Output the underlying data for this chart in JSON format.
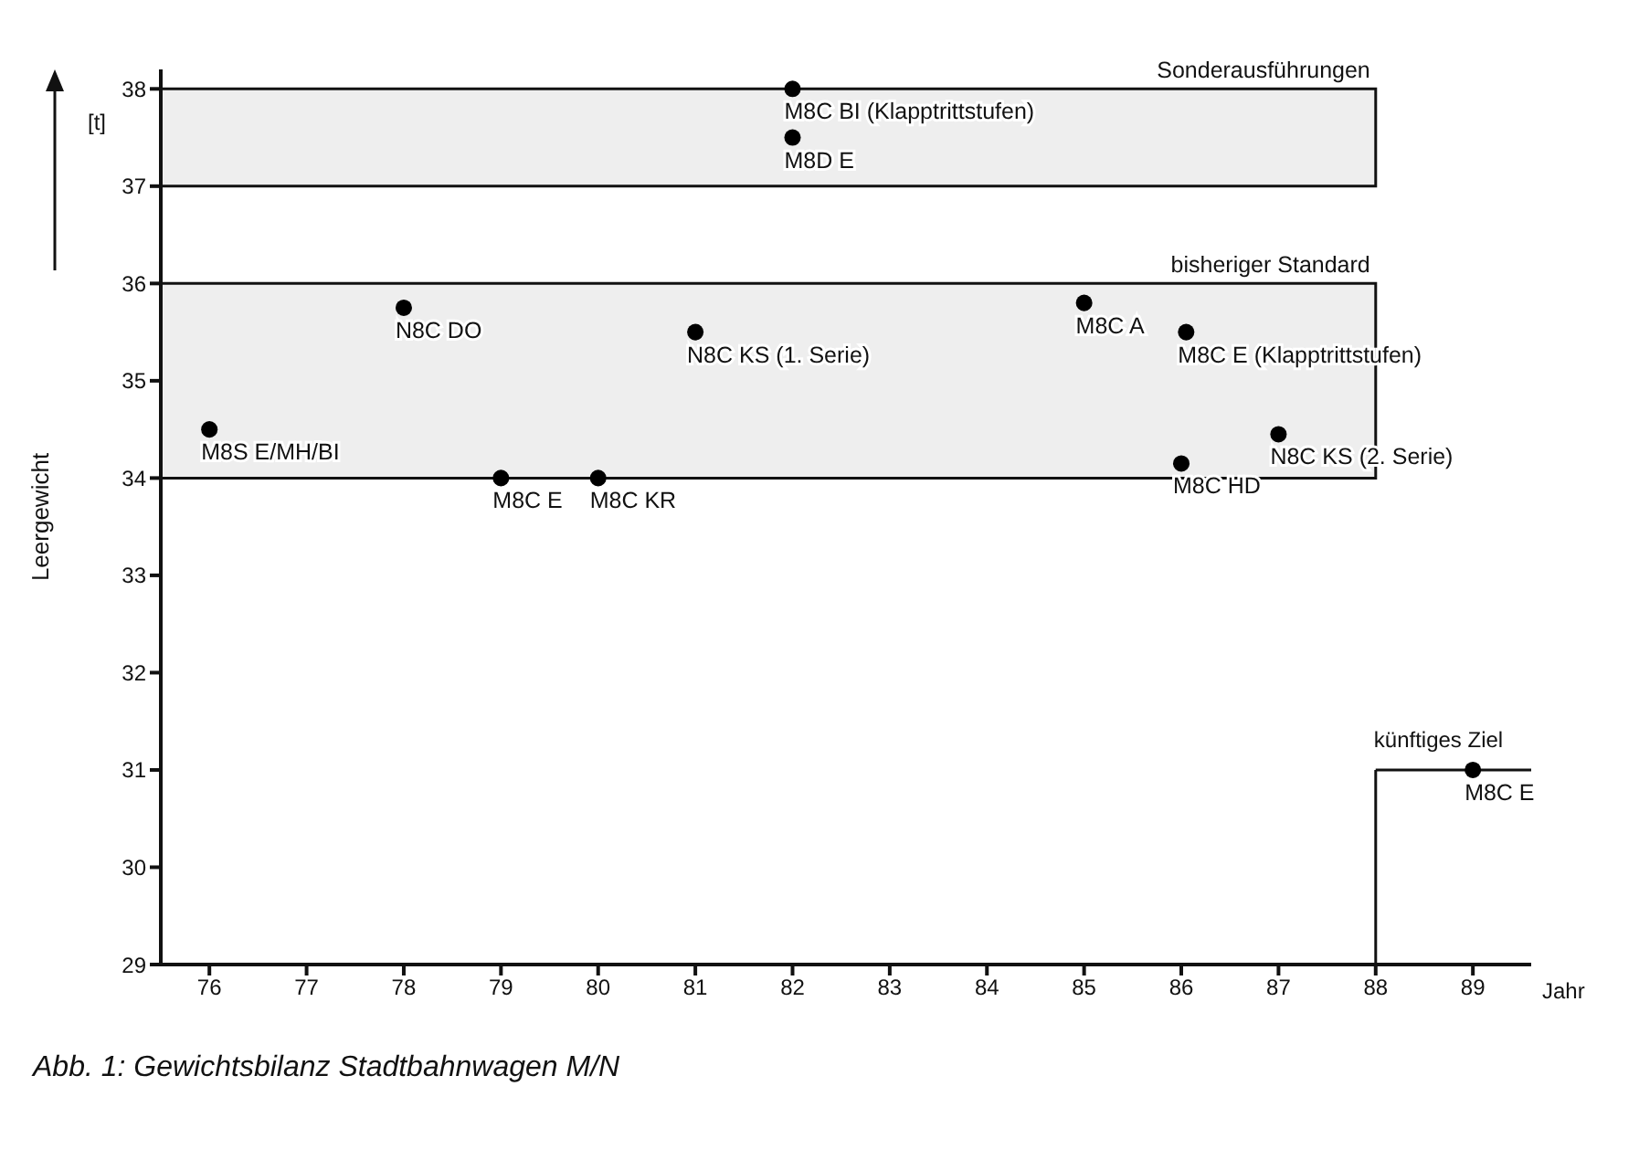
{
  "chart_data": {
    "type": "scatter",
    "title": "Abb. 1: Gewichtsbilanz Stadtbahnwagen M/N",
    "xlabel": "Jahr",
    "ylabel": "Leergewicht",
    "annotations": [
      "[t]"
    ],
    "xlim": [
      75.5,
      89.6
    ],
    "xticks": [
      76,
      77,
      78,
      79,
      80,
      81,
      82,
      83,
      84,
      85,
      86,
      87,
      88,
      89
    ],
    "ylim": [
      29,
      38.2
    ],
    "yticks": [
      29,
      30,
      31,
      32,
      33,
      34,
      35,
      36,
      37,
      38
    ],
    "marker": "circle",
    "series": [
      {
        "color": "#000000",
        "x": [
          76,
          78,
          79,
          80,
          81,
          82,
          82,
          85,
          86.05,
          86,
          87,
          89
        ],
        "values": [
          34.5,
          35.75,
          34,
          34,
          35.5,
          38,
          37.5,
          35.8,
          35.5,
          34.15,
          34.45,
          31
        ],
        "value_labels": [
          "M8S E/MH/BI",
          "N8C DO",
          "M8C E",
          "M8C KR",
          "N8C KS (1. Serie)",
          "M8C BI (Klapptrittstufen)",
          "M8D E",
          "M8C A",
          "M8C E (Klapptrittstufen)",
          "M8C HD",
          "N8C KS (2. Serie)",
          "M8C E"
        ]
      }
    ],
    "bands": [
      {
        "axis": "y",
        "from": 37,
        "to": 38,
        "label": "Sonderausführungen",
        "color": "#eeeeee"
      },
      {
        "axis": "y",
        "from": 34,
        "to": 36,
        "label": "bisheriger Standard",
        "color": "#eeeeee"
      }
    ],
    "ref_lines": [
      {
        "axis": "x",
        "value": 88
      },
      {
        "axis": "y",
        "value": 31,
        "label": "künftiges Ziel"
      }
    ]
  }
}
